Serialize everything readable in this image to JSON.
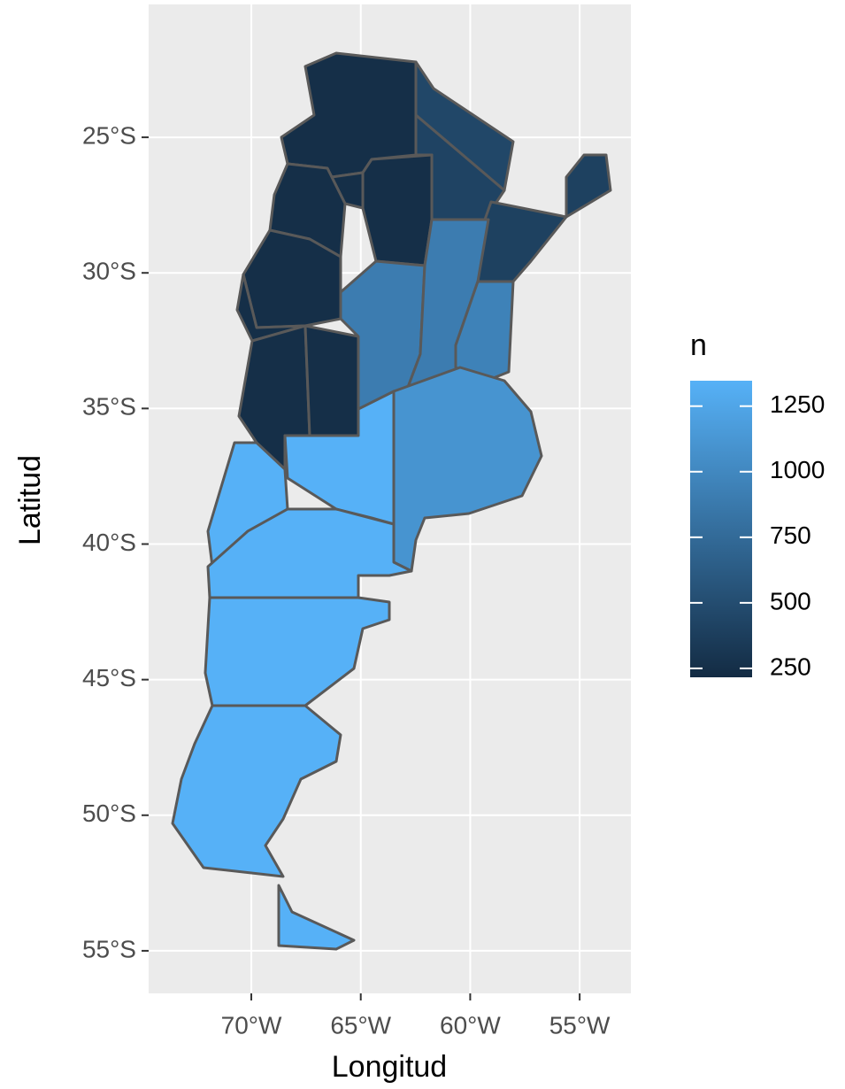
{
  "chart_data": {
    "type": "choropleth",
    "x_label": "Longitud",
    "y_label": "Latitud",
    "xlim": [
      -74.69,
      -52.66
    ],
    "xticks": [
      {
        "value": -70,
        "label": "70°W"
      },
      {
        "value": -65,
        "label": "65°W"
      },
      {
        "value": -60,
        "label": "60°W"
      },
      {
        "value": -55,
        "label": "55°W"
      }
    ],
    "ylim": [
      -56.57,
      -20.1
    ],
    "yticks": [
      {
        "value": -25,
        "label": "25°S"
      },
      {
        "value": -30,
        "label": "30°S"
      },
      {
        "value": -35,
        "label": "35°S"
      },
      {
        "value": -40,
        "label": "40°S"
      },
      {
        "value": -45,
        "label": "45°S"
      },
      {
        "value": -50,
        "label": "50°S"
      },
      {
        "value": -55,
        "label": "55°S"
      }
    ],
    "grid": true,
    "values": [
      250,
      450,
      420,
      400,
      400,
      250,
      250,
      250,
      250,
      250,
      250,
      250,
      900,
      900,
      950,
      1100,
      1350,
      1350,
      1350,
      1350,
      1350,
      1350
    ],
    "legend": {
      "title": "n",
      "position": "right",
      "limits": [
        216,
        1347
      ],
      "low_color": "#132B43",
      "high_color": "#56B1F7",
      "ticks": [
        250,
        500,
        750,
        1000,
        1250
      ]
    }
  }
}
